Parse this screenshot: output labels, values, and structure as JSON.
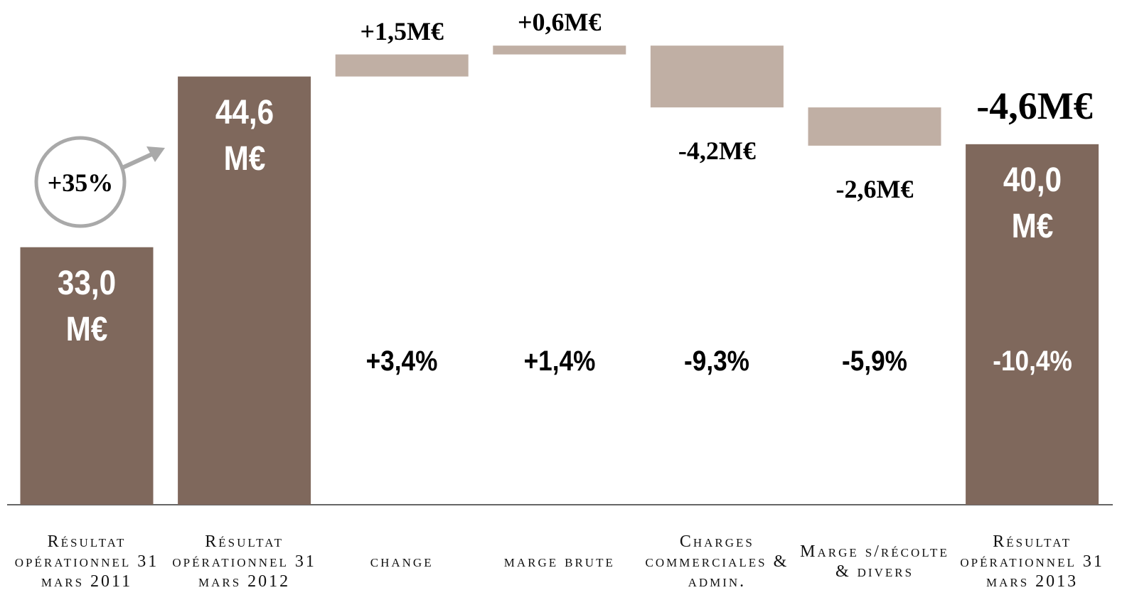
{
  "chart_data": {
    "type": "waterfall",
    "categories": [
      "Résultat opérationnel 31 mars 2011",
      "Résultat opérationnel 31 mars 2012",
      "change",
      "marge brute",
      "Charges commerciales & admin.",
      "Marge s/récolte & divers",
      "Résultat opérationnel 31 mars 2013"
    ],
    "values": [
      33.0,
      44.6,
      1.5,
      0.6,
      -4.2,
      -2.6,
      40.0
    ],
    "value_labels": [
      "33,0 M€",
      "44,6 M€",
      "+1,5M€",
      "+0,6M€",
      "-4,2M€",
      "-2,6M€",
      "40,0 M€"
    ],
    "measure": [
      "total",
      "total",
      "relative",
      "relative",
      "relative",
      "relative",
      "total"
    ],
    "percent_labels": [
      null,
      null,
      "+3,4%",
      "+1,4%",
      "-9,3%",
      "-5,9%",
      "-10,4%"
    ],
    "total_color": "#7f685c",
    "delta_color": "#c0afa4",
    "ylim": [
      15.5,
      47.5
    ],
    "annotations": {
      "growth": "+35%",
      "total_change": "-4,6M€"
    }
  }
}
